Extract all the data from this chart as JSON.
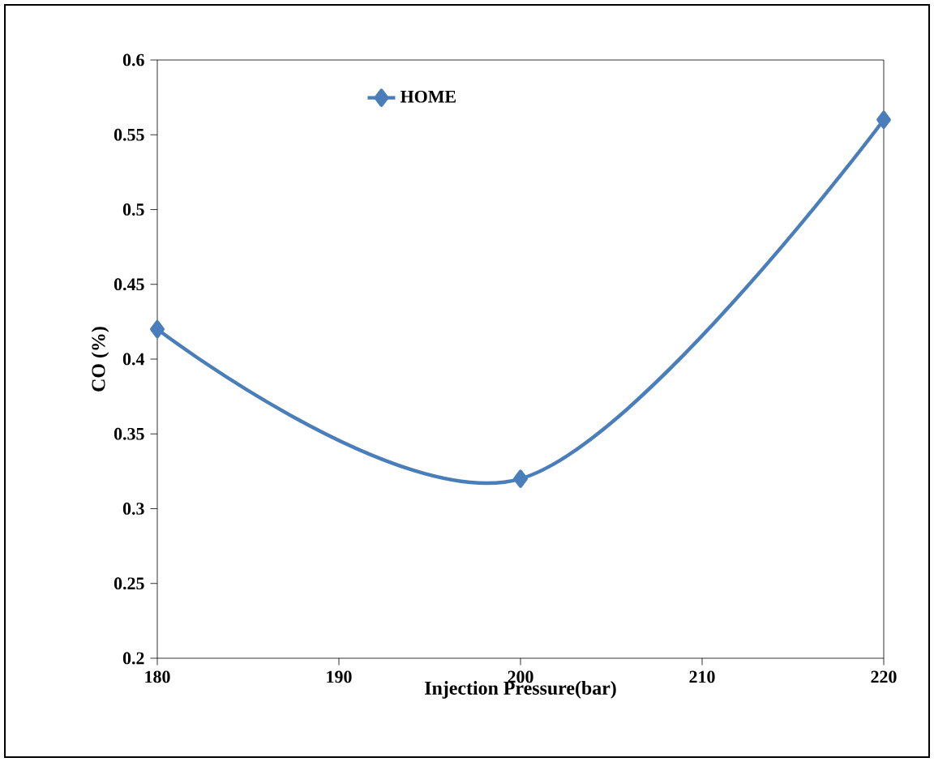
{
  "chart_data": {
    "type": "line",
    "xlabel": "Injection Pressure(bar)",
    "ylabel": "CO (%)",
    "x": [
      180,
      200,
      220
    ],
    "series": [
      {
        "name": "HOME",
        "color": "#4a7ebb",
        "values": [
          0.42,
          0.32,
          0.56
        ]
      }
    ],
    "xlim": [
      180,
      220
    ],
    "xticks": [
      180,
      190,
      200,
      210,
      220
    ],
    "ylim": [
      0.2,
      0.6
    ],
    "yticks": [
      0.2,
      0.25,
      0.3,
      0.35,
      0.4,
      0.45,
      0.5,
      0.55,
      0.6
    ],
    "legend": "top",
    "marker": "diamond",
    "line_style": "solid",
    "grid": false
  }
}
